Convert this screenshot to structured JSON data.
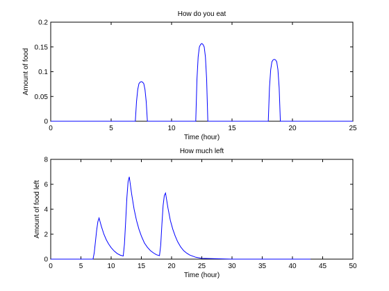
{
  "figure": {
    "background": "#ffffff",
    "line_color": "#0000ff"
  },
  "chart_data": [
    {
      "type": "line",
      "title": "How do you eat",
      "xlabel": "Time (hour)",
      "ylabel": "Amount of food",
      "xlim": [
        0,
        25
      ],
      "ylim": [
        0,
        0.2
      ],
      "xticks": [
        0,
        5,
        10,
        15,
        20,
        25
      ],
      "xtick_labels": [
        "0",
        "5",
        "10",
        "15",
        "20",
        "25"
      ],
      "yticks": [
        0,
        0.05,
        0.1,
        0.15,
        0.2
      ],
      "ytick_labels": [
        "0",
        "0.05",
        "0.1",
        "0.15",
        "0.2"
      ],
      "grid": false,
      "series": [
        {
          "color": "#0000ff",
          "x": [
            0,
            7.0,
            7.1,
            7.2,
            7.3,
            7.4,
            7.5,
            7.6,
            7.7,
            7.8,
            7.9,
            8.0,
            12.0,
            12.1,
            12.2,
            12.3,
            12.4,
            12.5,
            12.6,
            12.7,
            12.8,
            12.9,
            13.0,
            18.0,
            18.1,
            18.2,
            18.3,
            18.4,
            18.5,
            18.6,
            18.7,
            18.8,
            18.9,
            19.0,
            25
          ],
          "y": [
            0,
            0,
            0.04,
            0.064,
            0.076,
            0.079,
            0.08,
            0.079,
            0.076,
            0.064,
            0.04,
            0,
            0,
            0.085,
            0.13,
            0.15,
            0.155,
            0.157,
            0.155,
            0.15,
            0.13,
            0.085,
            0,
            0,
            0.068,
            0.104,
            0.12,
            0.124,
            0.125,
            0.124,
            0.12,
            0.104,
            0.068,
            0,
            0
          ]
        }
      ]
    },
    {
      "type": "line",
      "title": "How much left",
      "xlabel": "Time (hour)",
      "ylabel": "Amount of food left",
      "xlim": [
        0,
        50
      ],
      "ylim": [
        0,
        8
      ],
      "xticks": [
        0,
        5,
        10,
        15,
        20,
        25,
        30,
        35,
        40,
        45,
        50
      ],
      "xtick_labels": [
        "0",
        "5",
        "10",
        "15",
        "20",
        "25",
        "30",
        "35",
        "40",
        "45",
        "50"
      ],
      "yticks": [
        0,
        2,
        4,
        6,
        8
      ],
      "ytick_labels": [
        "0",
        "2",
        "4",
        "6",
        "8"
      ],
      "grid": false,
      "series": [
        {
          "color": "#0000ff",
          "x": [
            0,
            7.0,
            7.2,
            7.4,
            7.6,
            7.8,
            8.0,
            8.4,
            8.8,
            9.2,
            9.6,
            10.0,
            10.5,
            11.0,
            11.5,
            12.0,
            12.2,
            12.4,
            12.6,
            12.8,
            13.0,
            13.4,
            13.8,
            14.2,
            14.6,
            15.0,
            15.5,
            16.0,
            16.5,
            17.0,
            17.5,
            18.0,
            18.2,
            18.4,
            18.6,
            18.8,
            19.0,
            19.4,
            19.8,
            20.2,
            20.6,
            21.0,
            21.5,
            22.0,
            22.5,
            23.0,
            24.0,
            25.0,
            30.0,
            35.0,
            40.0,
            43.0
          ],
          "y": [
            0,
            0,
            0.5,
            1.4,
            2.3,
            3.0,
            3.3,
            2.6,
            2.0,
            1.55,
            1.2,
            0.92,
            0.65,
            0.45,
            0.32,
            0.25,
            1.2,
            3.0,
            4.9,
            6.2,
            6.6,
            5.2,
            4.0,
            3.1,
            2.4,
            1.85,
            1.3,
            0.95,
            0.68,
            0.5,
            0.35,
            0.28,
            1.1,
            2.8,
            4.3,
            5.1,
            5.3,
            4.1,
            3.1,
            2.4,
            1.85,
            1.4,
            0.98,
            0.68,
            0.48,
            0.33,
            0.15,
            0.06,
            0.0,
            0.0,
            0.0,
            0.0
          ]
        }
      ]
    }
  ]
}
